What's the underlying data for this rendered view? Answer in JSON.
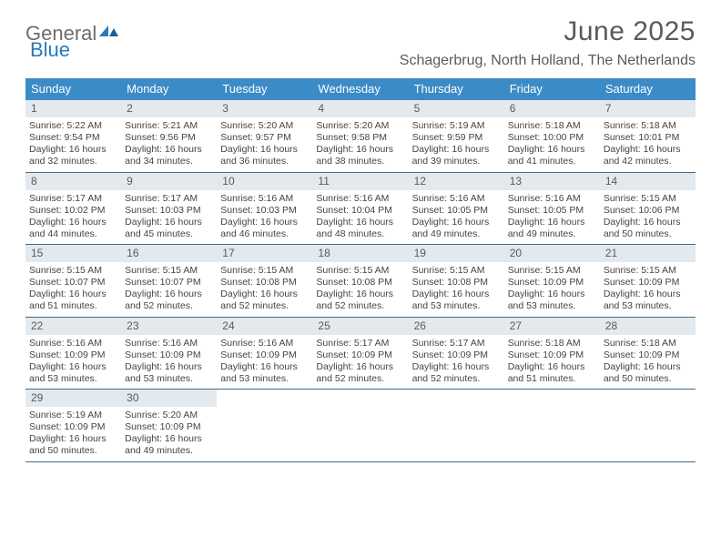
{
  "logo": {
    "text1": "General",
    "text2": "Blue"
  },
  "title": "June 2025",
  "location": "Schagerbrug, North Holland, The Netherlands",
  "colors": {
    "header_bg": "#3b8bc6",
    "header_text": "#ffffff",
    "daynum_bg": "#e4e9ed",
    "row_border": "#3b6b8f",
    "text": "#444444",
    "title_color": "#5a5a5a",
    "logo_gray": "#6e6e6e",
    "logo_blue": "#2a7ab9"
  },
  "dow": [
    "Sunday",
    "Monday",
    "Tuesday",
    "Wednesday",
    "Thursday",
    "Friday",
    "Saturday"
  ],
  "weeks": [
    [
      {
        "n": "1",
        "sr": "5:22 AM",
        "ss": "9:54 PM",
        "dl": "16 hours and 32 minutes."
      },
      {
        "n": "2",
        "sr": "5:21 AM",
        "ss": "9:56 PM",
        "dl": "16 hours and 34 minutes."
      },
      {
        "n": "3",
        "sr": "5:20 AM",
        "ss": "9:57 PM",
        "dl": "16 hours and 36 minutes."
      },
      {
        "n": "4",
        "sr": "5:20 AM",
        "ss": "9:58 PM",
        "dl": "16 hours and 38 minutes."
      },
      {
        "n": "5",
        "sr": "5:19 AM",
        "ss": "9:59 PM",
        "dl": "16 hours and 39 minutes."
      },
      {
        "n": "6",
        "sr": "5:18 AM",
        "ss": "10:00 PM",
        "dl": "16 hours and 41 minutes."
      },
      {
        "n": "7",
        "sr": "5:18 AM",
        "ss": "10:01 PM",
        "dl": "16 hours and 42 minutes."
      }
    ],
    [
      {
        "n": "8",
        "sr": "5:17 AM",
        "ss": "10:02 PM",
        "dl": "16 hours and 44 minutes."
      },
      {
        "n": "9",
        "sr": "5:17 AM",
        "ss": "10:03 PM",
        "dl": "16 hours and 45 minutes."
      },
      {
        "n": "10",
        "sr": "5:16 AM",
        "ss": "10:03 PM",
        "dl": "16 hours and 46 minutes."
      },
      {
        "n": "11",
        "sr": "5:16 AM",
        "ss": "10:04 PM",
        "dl": "16 hours and 48 minutes."
      },
      {
        "n": "12",
        "sr": "5:16 AM",
        "ss": "10:05 PM",
        "dl": "16 hours and 49 minutes."
      },
      {
        "n": "13",
        "sr": "5:16 AM",
        "ss": "10:05 PM",
        "dl": "16 hours and 49 minutes."
      },
      {
        "n": "14",
        "sr": "5:15 AM",
        "ss": "10:06 PM",
        "dl": "16 hours and 50 minutes."
      }
    ],
    [
      {
        "n": "15",
        "sr": "5:15 AM",
        "ss": "10:07 PM",
        "dl": "16 hours and 51 minutes."
      },
      {
        "n": "16",
        "sr": "5:15 AM",
        "ss": "10:07 PM",
        "dl": "16 hours and 52 minutes."
      },
      {
        "n": "17",
        "sr": "5:15 AM",
        "ss": "10:08 PM",
        "dl": "16 hours and 52 minutes."
      },
      {
        "n": "18",
        "sr": "5:15 AM",
        "ss": "10:08 PM",
        "dl": "16 hours and 52 minutes."
      },
      {
        "n": "19",
        "sr": "5:15 AM",
        "ss": "10:08 PM",
        "dl": "16 hours and 53 minutes."
      },
      {
        "n": "20",
        "sr": "5:15 AM",
        "ss": "10:09 PM",
        "dl": "16 hours and 53 minutes."
      },
      {
        "n": "21",
        "sr": "5:15 AM",
        "ss": "10:09 PM",
        "dl": "16 hours and 53 minutes."
      }
    ],
    [
      {
        "n": "22",
        "sr": "5:16 AM",
        "ss": "10:09 PM",
        "dl": "16 hours and 53 minutes."
      },
      {
        "n": "23",
        "sr": "5:16 AM",
        "ss": "10:09 PM",
        "dl": "16 hours and 53 minutes."
      },
      {
        "n": "24",
        "sr": "5:16 AM",
        "ss": "10:09 PM",
        "dl": "16 hours and 53 minutes."
      },
      {
        "n": "25",
        "sr": "5:17 AM",
        "ss": "10:09 PM",
        "dl": "16 hours and 52 minutes."
      },
      {
        "n": "26",
        "sr": "5:17 AM",
        "ss": "10:09 PM",
        "dl": "16 hours and 52 minutes."
      },
      {
        "n": "27",
        "sr": "5:18 AM",
        "ss": "10:09 PM",
        "dl": "16 hours and 51 minutes."
      },
      {
        "n": "28",
        "sr": "5:18 AM",
        "ss": "10:09 PM",
        "dl": "16 hours and 50 minutes."
      }
    ],
    [
      {
        "n": "29",
        "sr": "5:19 AM",
        "ss": "10:09 PM",
        "dl": "16 hours and 50 minutes."
      },
      {
        "n": "30",
        "sr": "5:20 AM",
        "ss": "10:09 PM",
        "dl": "16 hours and 49 minutes."
      },
      null,
      null,
      null,
      null,
      null
    ]
  ],
  "labels": {
    "sunrise": "Sunrise:",
    "sunset": "Sunset:",
    "daylight": "Daylight:"
  }
}
